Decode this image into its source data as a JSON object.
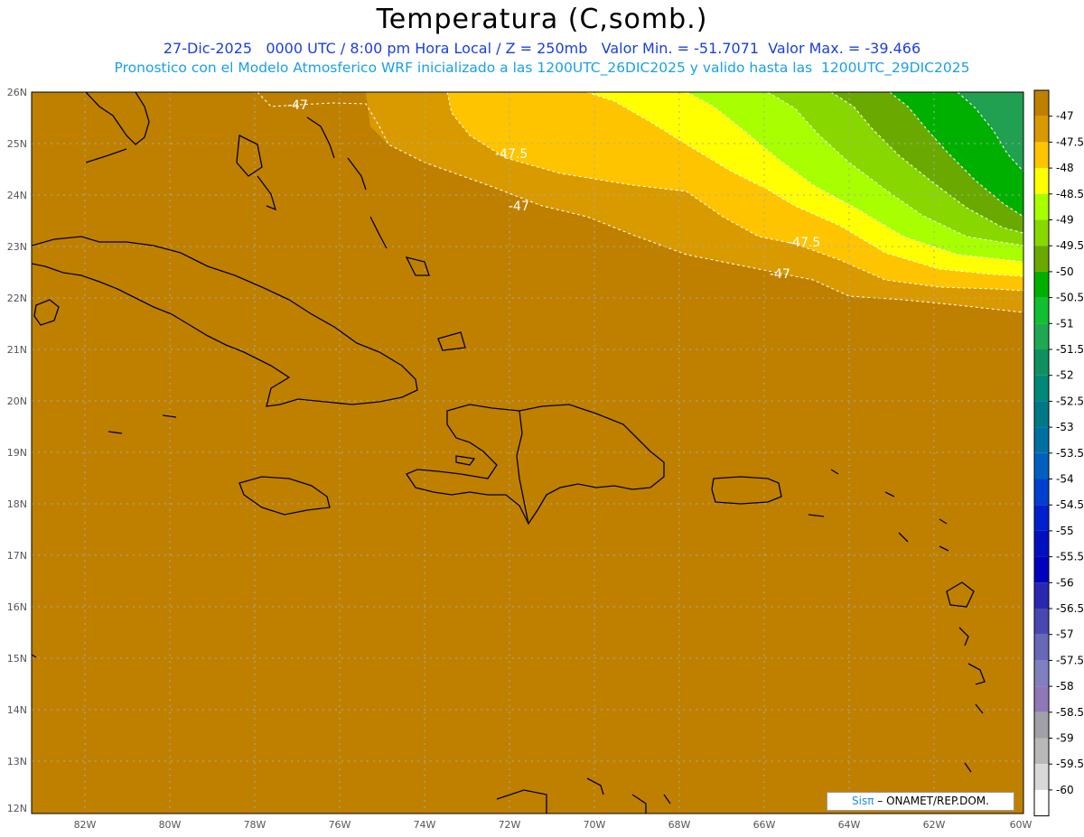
{
  "header": {
    "title": "Temperatura (C,somb.)",
    "line1": "27-Dic-2025   0000 UTC / 8:00 pm Hora Local / Z = 250mb   Valor Min. = -51.7071  Valor Max. = -39.466",
    "line2": "Pronostico con el Modelo Atmosferico WRF inicializado a las 1200UTC_26DIC2025 y valido hasta las  1200UTC_29DIC2025"
  },
  "map": {
    "lat_labels": [
      "26N",
      "25N",
      "24N",
      "23N",
      "22N",
      "21N",
      "20N",
      "19N",
      "18N",
      "17N",
      "16N",
      "15N",
      "14N",
      "13N",
      "12N"
    ],
    "lon_labels": [
      "82W",
      "80W",
      "78W",
      "76W",
      "74W",
      "72W",
      "70W",
      "68W",
      "66W",
      "64W",
      "62W",
      "60W"
    ],
    "contour_labels": [
      {
        "id": "c1",
        "text": "-47"
      },
      {
        "id": "c2",
        "text": "-47.5"
      },
      {
        "id": "c3",
        "text": "-47"
      },
      {
        "id": "c4",
        "text": "-47.5"
      },
      {
        "id": "c5",
        "text": "-47"
      }
    ],
    "base_color": "#bf8000"
  },
  "colorbar": {
    "labels": [
      "-47",
      "-47.5",
      "-48",
      "-48.5",
      "-49",
      "-49.5",
      "-50",
      "-50.5",
      "-51",
      "-51.5",
      "-52",
      "-52.5",
      "-53",
      "-53.5",
      "-54",
      "-54.5",
      "-55",
      "-55.5",
      "-56",
      "-56.5",
      "-57",
      "-57.5",
      "-58",
      "-58.5",
      "-59",
      "-59.5",
      "-60"
    ],
    "colors": [
      "#bf8000",
      "#d99a00",
      "#ffc400",
      "#ffff00",
      "#a8ff00",
      "#88d800",
      "#6aaa00",
      "#00b000",
      "#10c030",
      "#20a850",
      "#109060",
      "#008878",
      "#007888",
      "#0070a0",
      "#0060c0",
      "#0040d0",
      "#0020d0",
      "#0010c0",
      "#0000c0",
      "#2828b0",
      "#4848b0",
      "#6868b8",
      "#8080c0",
      "#9078b8",
      "#a0a0a8",
      "#b8b8b8",
      "#d8d8d8",
      "#ffffff"
    ]
  },
  "credit": {
    "brand": "Sisπ",
    "text": " – ONAMET/REP.DOM."
  }
}
